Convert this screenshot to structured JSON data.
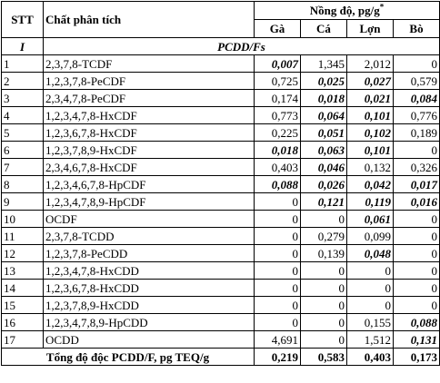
{
  "header": {
    "stt": "STT",
    "analyte": "Chất phân tích",
    "concentration": "Nồng độ, pg/g",
    "concentration_sup": "*",
    "columns": [
      "Gà",
      "Cá",
      "Lợn",
      "Bò"
    ]
  },
  "section": {
    "numeral": "I",
    "title": "PCDD/Fs"
  },
  "rows": [
    {
      "stt": "1",
      "name": "2,3,7,8-TCDF",
      "values": [
        "0,007",
        "1,345",
        "2,012",
        "0"
      ],
      "bold": [
        true,
        false,
        false,
        false
      ]
    },
    {
      "stt": "2",
      "name": "1,2,3,7,8-PeCDF",
      "values": [
        "0,725",
        "0,025",
        "0,027",
        "0,579"
      ],
      "bold": [
        false,
        true,
        true,
        false
      ]
    },
    {
      "stt": "3",
      "name": "2,3,4,7,8-PeCDF",
      "values": [
        "0,174",
        "0,018",
        "0,021",
        "0,084"
      ],
      "bold": [
        false,
        true,
        true,
        true
      ]
    },
    {
      "stt": "4",
      "name": "1,2,3,4,7,8-HxCDF",
      "values": [
        "0,773",
        "0,064",
        "0,101",
        "0,776"
      ],
      "bold": [
        false,
        true,
        true,
        false
      ]
    },
    {
      "stt": "5",
      "name": "1,2,3,6,7,8-HxCDF",
      "values": [
        "0,225",
        "0,051",
        "0,102",
        "0,189"
      ],
      "bold": [
        false,
        true,
        true,
        false
      ]
    },
    {
      "stt": "6",
      "name": "1,2,3,7,8,9-HxCDF",
      "values": [
        "0,018",
        "0,063",
        "0,101",
        "0"
      ],
      "bold": [
        true,
        true,
        true,
        false
      ]
    },
    {
      "stt": "7",
      "name": "2,3,4,6,7,8-HxCDF",
      "values": [
        "0,403",
        "0,046",
        "0,132",
        "0,326"
      ],
      "bold": [
        false,
        true,
        false,
        false
      ]
    },
    {
      "stt": "8",
      "name": "1,2,3,4,6,7,8-HpCDF",
      "values": [
        "0,088",
        "0,026",
        "0,042",
        "0,017"
      ],
      "bold": [
        true,
        true,
        true,
        true
      ]
    },
    {
      "stt": "9",
      "name": "1,2,3,4,7,8,9-HpCDF",
      "values": [
        "0",
        "0,121",
        "0,119",
        "0,016"
      ],
      "bold": [
        false,
        true,
        true,
        true
      ]
    },
    {
      "stt": "10",
      "name": "OCDF",
      "values": [
        "0",
        "0",
        "0,061",
        "0"
      ],
      "bold": [
        false,
        false,
        true,
        false
      ]
    },
    {
      "stt": "11",
      "name": "2,3,7,8-TCDD",
      "values": [
        "0",
        "0,279",
        "0,099",
        "0"
      ],
      "bold": [
        false,
        false,
        false,
        false
      ]
    },
    {
      "stt": "12",
      "name": "1,2,3,7,8-PeCDD",
      "values": [
        "0",
        "0,139",
        "0,048",
        "0"
      ],
      "bold": [
        false,
        false,
        true,
        false
      ]
    },
    {
      "stt": "13",
      "name": "1,2,3,4,7,8-HxCDD",
      "values": [
        "0",
        "0",
        "0",
        "0"
      ],
      "bold": [
        false,
        false,
        false,
        false
      ]
    },
    {
      "stt": "14",
      "name": "1,2,3,6,7,8-HxCDD",
      "values": [
        "0",
        "0",
        "0",
        "0"
      ],
      "bold": [
        false,
        false,
        false,
        false
      ]
    },
    {
      "stt": "15",
      "name": "1,2,3,7,8,9-HxCDD",
      "values": [
        "0",
        "0",
        "0",
        "0"
      ],
      "bold": [
        false,
        false,
        false,
        false
      ]
    },
    {
      "stt": "16",
      "name": "1,2,3,4,7,8,9-HpCDD",
      "values": [
        "0",
        "0",
        "0,155",
        "0,088"
      ],
      "bold": [
        false,
        false,
        false,
        true
      ]
    },
    {
      "stt": "17",
      "name": "OCDD",
      "values": [
        "4,691",
        "0",
        "1,512",
        "0,131"
      ],
      "bold": [
        false,
        false,
        false,
        true
      ]
    }
  ],
  "total": {
    "label": "Tổng độ độc PCDD/F, pg TEQ/g",
    "values": [
      "0,219",
      "0,583",
      "0,403",
      "0,173"
    ]
  }
}
